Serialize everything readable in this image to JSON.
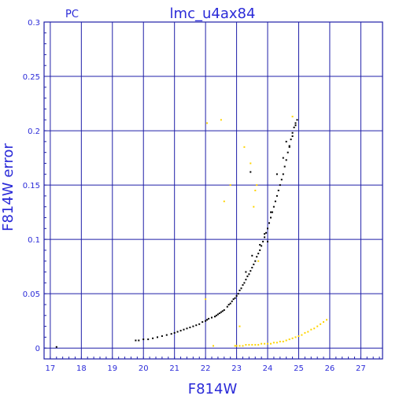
{
  "chart_data": {
    "type": "scatter",
    "title": "lmc_u4ax84",
    "corner_label": "PC",
    "xlabel": "F814W",
    "ylabel": "F814W error",
    "xlim": [
      16.8,
      27.7
    ],
    "ylim": [
      -0.01,
      0.3
    ],
    "x_ticks": [
      17,
      18,
      19,
      20,
      21,
      22,
      23,
      24,
      25,
      26,
      27
    ],
    "y_ticks": [
      0,
      0.05,
      0.1,
      0.15,
      0.2,
      0.25,
      0.3
    ],
    "y_tick_labels": [
      "0",
      "0.05",
      "0.1",
      "0.15",
      "0.2",
      "0.25",
      "0.3"
    ],
    "grid": true,
    "axis_color": "#1f1fa8",
    "text_color": "#2a2ad8",
    "series": [
      {
        "color": "#000000",
        "x": [
          17.2,
          19.75,
          19.85,
          20.0,
          20.15,
          20.3,
          20.45,
          20.6,
          20.75,
          20.9,
          21.0,
          21.1,
          21.2,
          21.3,
          21.4,
          21.5,
          21.6,
          21.7,
          21.8,
          21.9,
          22.0,
          22.05,
          22.1,
          22.2,
          22.3,
          22.35,
          22.4,
          22.45,
          22.5,
          22.55,
          22.6,
          22.7,
          22.75,
          22.8,
          22.85,
          22.9,
          22.95,
          23.0,
          23.05,
          23.1,
          23.15,
          23.2,
          23.25,
          23.3,
          23.35,
          23.4,
          23.45,
          23.5,
          23.55,
          23.6,
          23.65,
          23.7,
          23.75,
          23.8,
          23.85,
          23.9,
          23.95,
          24.0,
          24.05,
          24.1,
          24.15,
          24.2,
          24.25,
          24.3,
          24.35,
          24.4,
          24.45,
          24.5,
          24.55,
          24.6,
          24.65,
          24.7,
          24.75,
          24.8,
          24.85,
          24.9,
          24.95,
          23.3,
          23.5,
          23.75,
          23.9,
          24.0,
          24.1,
          24.3,
          24.5,
          24.7,
          24.9,
          23.45,
          24.6,
          24.8
        ],
        "y": [
          0.001,
          0.007,
          0.007,
          0.008,
          0.008,
          0.009,
          0.01,
          0.011,
          0.012,
          0.013,
          0.014,
          0.015,
          0.016,
          0.017,
          0.018,
          0.019,
          0.02,
          0.021,
          0.022,
          0.024,
          0.025,
          0.026,
          0.027,
          0.028,
          0.029,
          0.03,
          0.031,
          0.032,
          0.033,
          0.034,
          0.035,
          0.038,
          0.04,
          0.041,
          0.043,
          0.045,
          0.046,
          0.048,
          0.05,
          0.053,
          0.055,
          0.058,
          0.06,
          0.063,
          0.066,
          0.068,
          0.071,
          0.074,
          0.077,
          0.08,
          0.084,
          0.087,
          0.09,
          0.094,
          0.098,
          0.102,
          0.106,
          0.11,
          0.115,
          0.12,
          0.125,
          0.13,
          0.135,
          0.14,
          0.145,
          0.15,
          0.155,
          0.16,
          0.167,
          0.173,
          0.18,
          0.186,
          0.192,
          0.198,
          0.203,
          0.207,
          0.21,
          0.07,
          0.085,
          0.095,
          0.105,
          0.098,
          0.125,
          0.16,
          0.175,
          0.185,
          0.205,
          0.162,
          0.19,
          0.195
        ]
      },
      {
        "color": "#ffd400",
        "x": [
          22.0,
          22.05,
          22.5,
          22.6,
          22.8,
          23.1,
          23.25,
          23.45,
          23.55,
          23.6,
          23.65,
          23.7,
          22.95,
          23.0,
          23.1,
          23.2,
          23.3,
          23.4,
          23.5,
          23.6,
          23.7,
          23.8,
          23.9,
          24.0,
          24.1,
          24.2,
          24.3,
          24.4,
          24.5,
          24.6,
          24.7,
          24.8,
          24.9,
          25.0,
          25.1,
          25.2,
          25.3,
          25.4,
          25.5,
          25.6,
          25.7,
          25.8,
          25.9,
          22.25,
          24.8
        ],
        "y": [
          0.045,
          0.207,
          0.21,
          0.135,
          0.15,
          0.02,
          0.185,
          0.17,
          0.13,
          0.145,
          0.15,
          0.08,
          0.002,
          0.002,
          0.002,
          0.002,
          0.003,
          0.003,
          0.003,
          0.003,
          0.003,
          0.004,
          0.004,
          0.004,
          0.004,
          0.005,
          0.005,
          0.006,
          0.006,
          0.007,
          0.008,
          0.009,
          0.01,
          0.011,
          0.012,
          0.014,
          0.015,
          0.017,
          0.018,
          0.02,
          0.022,
          0.024,
          0.026,
          0.002,
          0.213
        ]
      }
    ]
  }
}
